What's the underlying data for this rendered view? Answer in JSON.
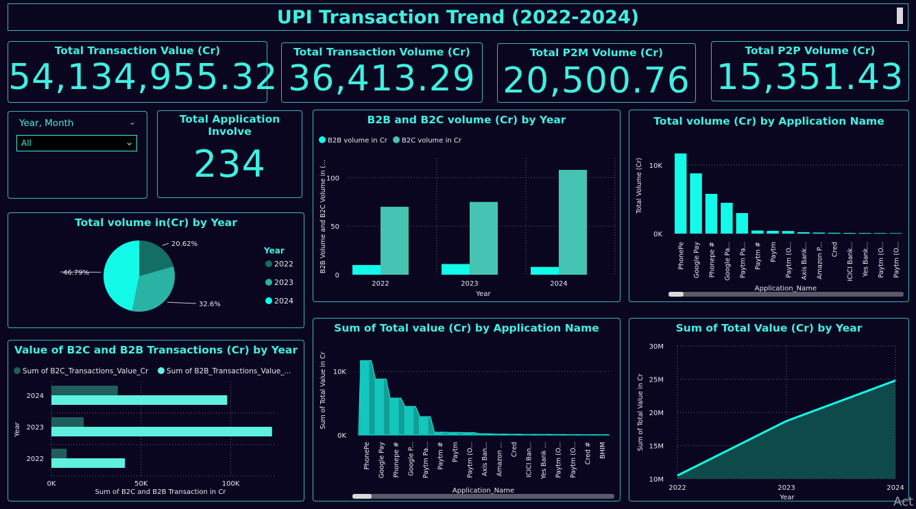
{
  "header": {
    "title": "UPI Transaction Trend (2022-2024)"
  },
  "kpis": {
    "total_value": {
      "label": "Total Transaction Value (Cr)",
      "value": "54,134,955.32"
    },
    "total_volume": {
      "label": "Total Transaction Volume (Cr)",
      "value": "36,413.29"
    },
    "p2m": {
      "label": "Total P2M Volume (Cr)",
      "value": "20,500.76"
    },
    "p2p": {
      "label": "Total P2P Volume (Cr)",
      "value": "15,351.43"
    },
    "apps": {
      "label": "Total Application Involve",
      "value": "234"
    }
  },
  "slicer": {
    "label": "Year, Month",
    "selected": "All"
  },
  "colors": {
    "accent": "#3ff0e0",
    "teal_mid": "#2ab3a4",
    "teal_dark": "#136e64",
    "bright": "#13fbe8",
    "bg": "#0b0620",
    "border": "#3fb6b8"
  },
  "chart_data": [
    {
      "id": "pie",
      "type": "pie",
      "title": "Total volume in(Cr) by Year",
      "legend_title": "Year",
      "legend_position": "right",
      "categories": [
        "2022",
        "2023",
        "2024"
      ],
      "values": [
        20.62,
        32.6,
        46.79
      ],
      "labels": [
        "20.62%",
        "32.6%",
        "46.79%"
      ],
      "colors": [
        "#136e64",
        "#2ab3a4",
        "#13fbe8"
      ]
    },
    {
      "id": "b2b_b2c_volume",
      "type": "bar",
      "title": "B2B and B2C volume (Cr) by Year",
      "xlabel": "Year",
      "ylabel": "B2B Volume and B2C Volume in (...",
      "categories": [
        "2022",
        "2023",
        "2024"
      ],
      "series": [
        {
          "name": "B2B volume in Cr",
          "values": [
            10,
            11,
            8
          ],
          "color": "#13fbe8"
        },
        {
          "name": "B2C volume in Cr",
          "values": [
            70,
            75,
            108
          ],
          "color": "#45c4b4"
        }
      ],
      "ylim": [
        0,
        120
      ],
      "yticks": [
        0,
        50,
        100
      ],
      "grid": true,
      "legend_position": "top-left"
    },
    {
      "id": "vol_by_app",
      "type": "bar",
      "title": "Total volume (Cr) by Application Name",
      "xlabel": "Application_Name",
      "ylabel": "Total Volume (Cr)",
      "categories": [
        "PhonePe",
        "Google Pay",
        "Phonepe #",
        "Google Pa...",
        "Paytm Pa...",
        "Paytm #",
        "Paytm",
        "Paytm (O...",
        "Axis Bank...",
        "Amazon P...",
        "Cred",
        "ICICI Bank...",
        "Yes Bank...",
        "Paytm (O...",
        "Paytm (O..."
      ],
      "values": [
        11700,
        8800,
        5800,
        4500,
        3000,
        450,
        400,
        380,
        200,
        150,
        120,
        100,
        90,
        80,
        70
      ],
      "ylim": [
        0,
        14000
      ],
      "ytick_labels": [
        "0K",
        "10K"
      ],
      "yticks": [
        0,
        10000
      ],
      "grid": true
    },
    {
      "id": "b2c_b2b_value",
      "type": "bar",
      "orientation": "horizontal",
      "title": "Value of B2C and B2B Transactions (Cr) by Year",
      "xlabel": "Sum of B2C and B2B Transaction in Cr",
      "ylabel": "Year",
      "categories": [
        "2024",
        "2023",
        "2022"
      ],
      "series": [
        {
          "name": "Sum of B2C_Transactions_Value_Cr",
          "values": [
            37000,
            18000,
            8500
          ],
          "color": "#1f5e5a"
        },
        {
          "name": "Sum of B2B_Transactions_Value_...",
          "values": [
            98000,
            123000,
            41000
          ],
          "color": "#5ff0e0"
        }
      ],
      "xlim": [
        0,
        125000
      ],
      "xticks": [
        0,
        50000,
        100000
      ],
      "xtick_labels": [
        "0K",
        "50K",
        "100K"
      ],
      "grid": true,
      "legend_position": "top-left"
    },
    {
      "id": "value_by_app",
      "type": "area",
      "title": "Sum of Total value (Cr) by Application Name",
      "xlabel": "Application_Name",
      "ylabel": "Sum of Total Value in Cr",
      "categories": [
        "PhonePe",
        "Google Pay",
        "Phonepe #",
        "Google P...",
        "Paytm Pa...",
        "Paytm #",
        "Paytm",
        "Paytm (O...",
        "Axis Ban...",
        "Amazon ...",
        "Cred",
        "ICICI Ban...",
        "Yes Bank ...",
        "Paytm (O...",
        "Paytm (O...",
        "Cred #",
        "BHIM"
      ],
      "values": [
        11700,
        8800,
        5800,
        4500,
        2900,
        450,
        400,
        380,
        200,
        150,
        120,
        100,
        90,
        80,
        70,
        60,
        50
      ],
      "ylim": [
        0,
        14000
      ],
      "yticks": [
        0,
        10000
      ],
      "ytick_labels": [
        "0K",
        "10K"
      ],
      "grid": true
    },
    {
      "id": "value_by_year",
      "type": "area",
      "title": "Sum of Total Value (Cr) by Year",
      "xlabel": "Year",
      "ylabel": "Sum of Total Value in Cr",
      "x": [
        "2022",
        "2023",
        "2024"
      ],
      "values": [
        10500000,
        18700000,
        24800000
      ],
      "ylim": [
        10000000,
        30000000
      ],
      "yticks": [
        10000000,
        15000000,
        20000000,
        25000000,
        30000000
      ],
      "ytick_labels": [
        "10M",
        "15M",
        "20M",
        "25M",
        "30M"
      ],
      "grid": true
    }
  ],
  "corner_text": "Act"
}
